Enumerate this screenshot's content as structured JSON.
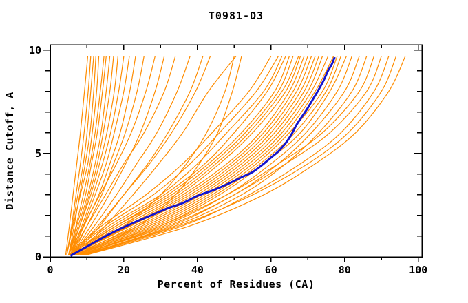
{
  "window": {
    "background": "#ffffff"
  },
  "chart_data": {
    "type": "line",
    "title": "T0981-D3",
    "xlabel": "Percent of Residues (CA)",
    "ylabel": "Distance Cutoff, A",
    "xlim": [
      0,
      101
    ],
    "ylim": [
      0,
      10.25
    ],
    "grid": false,
    "legend": "none",
    "x_ticks": {
      "values": [
        0,
        10,
        20,
        30,
        40,
        50,
        60,
        70,
        80,
        90,
        100
      ],
      "major": [
        0,
        20,
        40,
        60,
        80,
        100
      ],
      "labels": [
        "0",
        "20",
        "40",
        "60",
        "80",
        "100"
      ]
    },
    "y_ticks": {
      "values": [
        0,
        1,
        2,
        3,
        4,
        5,
        6,
        7,
        8,
        9,
        10
      ],
      "major": [
        0,
        5,
        10
      ],
      "labels": [
        "0",
        "5",
        "10"
      ]
    },
    "colors": {
      "model_line": "#ff8c00",
      "highlight_line": "#1414cc",
      "frame": "#000000",
      "text": "#000000"
    },
    "cut_grid": [
      0.1,
      1.5,
      3,
      4.5,
      6,
      8,
      9.7
    ],
    "models_pct_at_cut_grid": [
      [
        4.2,
        5.2,
        6.2,
        7.2,
        8.2,
        9.3,
        10.2
      ],
      [
        4.5,
        5.8,
        7,
        8.2,
        9.2,
        10.3,
        11
      ],
      [
        4.5,
        6,
        7.5,
        9,
        10,
        11,
        11.8
      ],
      [
        5,
        6.5,
        8,
        9.5,
        10.8,
        11.8,
        12.4
      ],
      [
        4.5,
        6.2,
        8.2,
        10.2,
        11.4,
        12.6,
        13.2
      ],
      [
        5,
        7,
        9,
        10.8,
        12.2,
        13.6,
        14.6
      ],
      [
        5,
        7.2,
        9.6,
        11.2,
        12.8,
        14.2,
        15.2
      ],
      [
        5,
        7.6,
        10.2,
        12.2,
        13.8,
        15.2,
        16.2
      ],
      [
        5.5,
        8,
        10.6,
        12.8,
        14.4,
        16.2,
        17.2
      ],
      [
        5,
        8,
        11,
        13.4,
        15.4,
        17.4,
        18.4
      ],
      [
        5.5,
        8.6,
        11.6,
        14.2,
        16.4,
        18.6,
        20
      ],
      [
        6,
        9,
        12.2,
        15.2,
        17.4,
        20,
        21.5
      ],
      [
        5.5,
        9.2,
        13.2,
        16.2,
        19,
        21.6,
        23.2
      ],
      [
        6,
        10,
        14,
        17.2,
        20.4,
        23.6,
        25.5
      ],
      [
        5,
        9,
        13.5,
        18,
        22,
        26,
        28.5
      ],
      [
        6,
        11,
        16,
        20.5,
        24.5,
        28.5,
        31
      ],
      [
        5.5,
        10,
        15,
        20,
        25.5,
        31,
        34
      ],
      [
        6,
        12,
        18,
        23.5,
        29,
        34.5,
        38
      ],
      [
        6.5,
        13.5,
        20,
        26.5,
        32,
        38,
        41.5
      ],
      [
        6,
        13,
        20,
        27,
        33,
        39.5,
        43.5
      ],
      [
        7,
        15,
        22.5,
        29.5,
        36,
        43,
        50.5
      ],
      [
        6,
        20,
        30,
        37,
        42.5,
        47.5,
        50
      ],
      [
        7,
        24,
        34,
        40.5,
        45.5,
        49.5,
        52
      ],
      [
        5,
        14,
        26,
        36,
        44,
        54,
        60
      ],
      [
        5.5,
        15,
        28,
        38,
        46,
        56,
        62
      ],
      [
        6,
        16,
        30,
        40,
        48,
        58,
        63
      ],
      [
        5.5,
        17,
        31,
        42,
        50,
        59,
        64
      ],
      [
        6,
        18,
        32,
        43,
        52,
        61,
        65
      ],
      [
        5,
        18,
        33,
        44,
        53,
        62,
        66
      ],
      [
        6,
        19,
        34,
        45,
        54,
        63,
        67.5
      ],
      [
        5.5,
        20,
        35,
        46,
        55,
        64,
        68
      ],
      [
        6,
        21,
        36,
        48,
        57,
        65,
        69
      ],
      [
        5.5,
        21.5,
        37,
        49,
        58,
        66,
        70
      ],
      [
        6,
        22,
        38,
        50,
        59,
        67,
        71
      ],
      [
        7,
        23,
        39,
        51,
        60,
        68,
        72
      ],
      [
        6,
        24,
        40,
        52,
        61,
        69,
        73
      ],
      [
        7,
        25,
        41,
        53,
        62,
        70,
        74
      ],
      [
        6.5,
        26,
        42,
        54,
        63,
        71,
        75.5
      ],
      [
        7,
        27,
        43,
        55,
        64,
        72,
        77
      ],
      [
        7.5,
        28,
        44,
        56,
        65,
        74,
        78
      ],
      [
        7,
        29,
        45,
        57,
        66.5,
        75,
        79
      ],
      [
        8,
        30,
        46,
        58,
        68,
        76,
        80.5
      ],
      [
        8,
        31,
        48,
        60,
        69.5,
        78,
        82
      ],
      [
        8,
        32,
        50,
        62,
        71,
        80,
        84
      ],
      [
        8.5,
        34,
        52,
        64,
        73,
        82,
        86
      ],
      [
        8,
        30,
        48,
        62,
        74,
        84,
        88
      ],
      [
        9,
        33,
        50,
        64,
        76,
        86,
        90
      ],
      [
        9.5,
        36,
        54,
        68,
        79,
        88,
        92
      ],
      [
        9,
        35,
        55,
        70,
        81,
        90,
        94
      ],
      [
        10,
        38,
        58,
        72,
        83,
        92,
        96.5
      ]
    ],
    "highlight_curve": [
      [
        5.5,
        0.05
      ],
      [
        8,
        0.3
      ],
      [
        11,
        0.6
      ],
      [
        15,
        1.0
      ],
      [
        19,
        1.35
      ],
      [
        24,
        1.75
      ],
      [
        28,
        2.05
      ],
      [
        32,
        2.35
      ],
      [
        36,
        2.6
      ],
      [
        40,
        2.95
      ],
      [
        44,
        3.2
      ],
      [
        48,
        3.5
      ],
      [
        52,
        3.85
      ],
      [
        55,
        4.1
      ],
      [
        58,
        4.5
      ],
      [
        60,
        4.8
      ],
      [
        62,
        5.1
      ],
      [
        64,
        5.5
      ],
      [
        65.5,
        5.9
      ],
      [
        67,
        6.4
      ],
      [
        68.5,
        6.8
      ],
      [
        70,
        7.2
      ],
      [
        71.5,
        7.65
      ],
      [
        73,
        8.1
      ],
      [
        74.5,
        8.6
      ],
      [
        75.5,
        9.0
      ],
      [
        76.5,
        9.3
      ],
      [
        77.3,
        9.65
      ]
    ]
  }
}
